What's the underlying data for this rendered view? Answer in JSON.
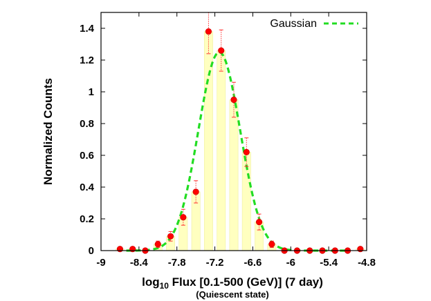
{
  "chart_data": {
    "type": "bar",
    "title": "",
    "xlabel_prefix": "log",
    "xlabel_sub": "10",
    "xlabel_rest": " Flux [0.1-500 (GeV)] (7 day)",
    "xlabel_note": "(Quiescent state)",
    "ylabel": "Normalized Counts",
    "xlim": [
      -9,
      -4.8
    ],
    "ylim": [
      0,
      1.5
    ],
    "x_ticks": [
      "-9",
      "-8.4",
      "-7.8",
      "-7.2",
      "-6.6",
      "-6",
      "-5.4",
      "-4.8"
    ],
    "x_tick_values": [
      -9,
      -8.4,
      -7.8,
      -7.2,
      -6.6,
      -6,
      -5.4,
      -4.8
    ],
    "y_ticks": [
      "0",
      "0.2",
      "0.4",
      "0.6",
      "0.8",
      "1",
      "1.2",
      "1.4"
    ],
    "y_tick_values": [
      0,
      0.2,
      0.4,
      0.6,
      0.8,
      1,
      1.2,
      1.4
    ],
    "bin_width": 0.2,
    "histogram": {
      "x": [
        -8.7,
        -8.5,
        -8.3,
        -8.1,
        -7.9,
        -7.7,
        -7.5,
        -7.3,
        -7.1,
        -6.9,
        -6.7,
        -6.5,
        -6.3,
        -6.1,
        -5.9,
        -5.7,
        -5.5,
        -5.3,
        -5.1,
        -4.9
      ],
      "values": [
        0.01,
        0.01,
        0.0,
        0.04,
        0.09,
        0.21,
        0.37,
        1.38,
        1.26,
        0.95,
        0.62,
        0.18,
        0.04,
        0.0,
        0.0,
        0.0,
        0.0,
        0.0,
        0.0,
        0.01
      ],
      "errors": [
        0.0,
        0.0,
        0.0,
        0.02,
        0.03,
        0.05,
        0.07,
        0.14,
        0.13,
        0.11,
        0.09,
        0.05,
        0.02,
        0.0,
        0.0,
        0.0,
        0.0,
        0.0,
        0.0,
        0.0
      ]
    },
    "gaussian": {
      "name": "Gaussian",
      "mu": -7.13,
      "sigma": 0.33,
      "amplitude": 1.25,
      "x_range": [
        -8.6,
        -5.1
      ]
    },
    "legend_position": "top-right",
    "grid": false
  },
  "colors": {
    "bar_fill": "#ffffc0",
    "point": "#ff0000",
    "point_edge": "#d00000",
    "error_bar": "#ff3030",
    "gaussian": "#22dd22",
    "axis": "#000000"
  }
}
